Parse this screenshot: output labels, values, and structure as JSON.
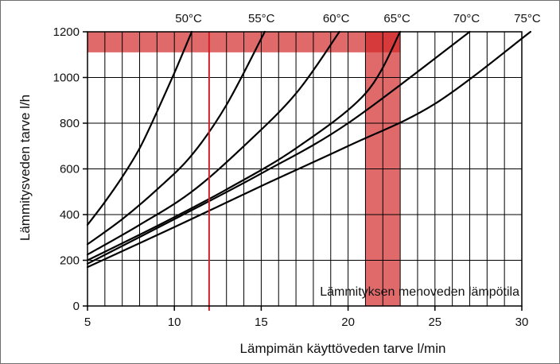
{
  "chart_data": {
    "type": "line",
    "title": "",
    "xlabel": "Lämpimän käyttöveden tarve l/min",
    "ylabel": "Lämmitysveden tarve  l/h",
    "xlim": [
      5,
      30
    ],
    "ylim": [
      0,
      1200
    ],
    "xticks": [
      5,
      10,
      15,
      20,
      25,
      30
    ],
    "yticks": [
      0,
      200,
      400,
      600,
      800,
      1000,
      1200
    ],
    "x_minor_step": 1,
    "grid": {
      "vertical": true,
      "horizontal_major": true
    },
    "annotation": "Lämmityksen menoveden lämpötila",
    "highlights": {
      "horizontal_band": {
        "y_from": 1110,
        "y_to": 1200,
        "x_from": 5,
        "x_to": 23,
        "color": "#e06a6a"
      },
      "vertical_band": {
        "x_from": 21,
        "x_to": 23,
        "y_from": 0,
        "y_to": 1200,
        "color": "#e06a6a"
      },
      "overlap_color": "#d63a3a",
      "marker_line": {
        "x": 12,
        "color": "#d0202a"
      }
    },
    "series": [
      {
        "name": "50°C",
        "x": [
          5,
          6,
          7,
          8,
          9,
          10,
          11
        ],
        "values": [
          355,
          455,
          565,
          690,
          850,
          1020,
          1200
        ]
      },
      {
        "name": "55°C",
        "x": [
          5,
          7,
          9,
          11,
          13,
          15.2
        ],
        "values": [
          270,
          380,
          510,
          660,
          880,
          1200
        ]
      },
      {
        "name": "60°C",
        "x": [
          5,
          8,
          11,
          14,
          17,
          19.5
        ],
        "values": [
          225,
          355,
          500,
          700,
          930,
          1200
        ]
      },
      {
        "name": "65°C",
        "x": [
          5,
          9,
          13,
          17,
          21,
          23
        ],
        "values": [
          200,
          350,
          510,
          690,
          930,
          1200
        ]
      },
      {
        "name": "70°C",
        "x": [
          5,
          10,
          15,
          20,
          27
        ],
        "values": [
          185,
          380,
          580,
          800,
          1200
        ]
      },
      {
        "name": "75°C",
        "x": [
          5,
          10,
          15,
          20,
          25,
          30.5
        ],
        "values": [
          170,
          345,
          525,
          700,
          885,
          1200
        ]
      }
    ]
  }
}
